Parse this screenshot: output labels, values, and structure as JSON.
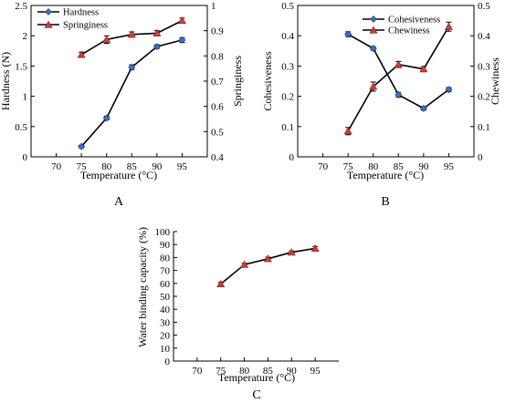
{
  "colors": {
    "series_blue": "#3a6fc4",
    "series_red": "#d23c3c",
    "line": "#000000"
  },
  "chart_data": [
    {
      "panel": "A",
      "type": "line",
      "title": "",
      "xlabel": "Temperature (°C)",
      "ylabel_left": "Hardness (N)",
      "ylabel_right": "Springiness",
      "xlim": [
        65,
        100
      ],
      "x_ticks": [
        70,
        75,
        80,
        85,
        90,
        95
      ],
      "ylim_left": [
        0,
        2.5
      ],
      "y_ticks_left": [
        "0",
        "0.5",
        "1",
        "1.5",
        "2",
        "2.5"
      ],
      "ylim_right": [
        0.4,
        1.0
      ],
      "y_ticks_right": [
        "0.4",
        "0.5",
        "0.6",
        "0.7",
        "0.8",
        "0.9",
        "1"
      ],
      "legend": "top-left",
      "grid": false,
      "series": [
        {
          "name": "Hardness",
          "axis": "left",
          "marker": "diamond",
          "color": "#3a6fc4",
          "x": [
            75,
            80,
            85,
            90,
            95
          ],
          "y": [
            0.17,
            0.64,
            1.48,
            1.82,
            1.93
          ],
          "err": [
            0.02,
            0.03,
            0.04,
            0.03,
            0.04
          ]
        },
        {
          "name": "Springiness",
          "axis": "right",
          "marker": "triangle",
          "color": "#d23c3c",
          "x": [
            75,
            80,
            85,
            90,
            95
          ],
          "y": [
            0.805,
            0.865,
            0.885,
            0.89,
            0.94
          ],
          "err": [
            0.01,
            0.015,
            0.01,
            0.01,
            0.01
          ]
        }
      ]
    },
    {
      "panel": "B",
      "type": "line",
      "title": "",
      "xlabel": "Temperature (°C)",
      "ylabel_left": "Cohesiveness",
      "ylabel_right": "Chewiness",
      "xlim": [
        65,
        100
      ],
      "x_ticks": [
        70,
        75,
        80,
        85,
        90,
        95
      ],
      "ylim_left": [
        0,
        0.5
      ],
      "y_ticks_left": [
        "0",
        "0.1",
        "0.2",
        "0.3",
        "0.4",
        "0.5"
      ],
      "ylim_right": [
        0,
        0.5
      ],
      "y_ticks_right": [
        "0",
        "0.1",
        "0.2",
        "0.3",
        "0.4",
        "0.5"
      ],
      "legend": "top-right",
      "grid": false,
      "series": [
        {
          "name": "Cohesiveness",
          "axis": "left",
          "marker": "diamond",
          "color": "#3a6fc4",
          "x": [
            75,
            80,
            85,
            90,
            95
          ],
          "y": [
            0.405,
            0.358,
            0.205,
            0.16,
            0.222
          ],
          "err": [
            0.008,
            0.006,
            0.008,
            0.006,
            0.007
          ]
        },
        {
          "name": "Chewiness",
          "axis": "right",
          "marker": "triangle",
          "color": "#d23c3c",
          "x": [
            75,
            80,
            85,
            90,
            95
          ],
          "y": [
            0.085,
            0.232,
            0.305,
            0.29,
            0.43
          ],
          "err": [
            0.012,
            0.015,
            0.01,
            0.008,
            0.015
          ]
        }
      ]
    },
    {
      "panel": "C",
      "type": "line",
      "title": "",
      "xlabel": "Temperature (°C)",
      "ylabel_left": "Water binding capacity (%)",
      "xlim": [
        65,
        100
      ],
      "x_ticks": [
        70,
        75,
        80,
        85,
        90,
        95
      ],
      "ylim_left": [
        0,
        100
      ],
      "y_ticks_left": [
        "0",
        "10",
        "20",
        "30",
        "40",
        "50",
        "60",
        "70",
        "80",
        "90",
        "100"
      ],
      "legend": "none",
      "grid": false,
      "series": [
        {
          "name": "",
          "axis": "left",
          "marker": "triangle",
          "color": "#d23c3c",
          "x": [
            75,
            80,
            85,
            90,
            95
          ],
          "y": [
            59.5,
            74.5,
            79,
            84,
            87
          ],
          "err": [
            1.2,
            1.0,
            1.2,
            1.0,
            1.5
          ]
        }
      ]
    }
  ]
}
